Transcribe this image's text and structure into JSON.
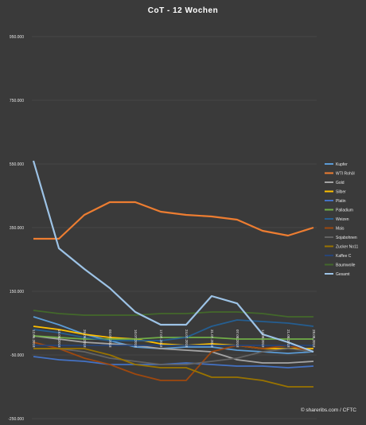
{
  "chart_data": {
    "type": "line",
    "title": "CoT - 12 Wochen",
    "credit": "© shareribs.com / CFTC",
    "ylim": [
      -250000,
      950000
    ],
    "yticks": [
      "950.000",
      "750.000",
      "550.000",
      "350.000",
      "150.000",
      "-50.000",
      "-250.000"
    ],
    "ytick_values": [
      950000,
      750000,
      550000,
      350000,
      150000,
      -50000,
      -250000
    ],
    "x": [
      "12.06.2018",
      "19.06.2018",
      "26.06.2018",
      "03.07.2018",
      "10.07.2018",
      "17.07.2018",
      "24.07.2018",
      "31.07.2018",
      "07.08.2018",
      "14.08.2018",
      "21.08.2018",
      "28.08.2018"
    ],
    "grid": true,
    "legend_position": "right",
    "series": [
      {
        "name": "Kupfer",
        "color": "#5b9bd5",
        "values": [
          70000,
          45000,
          15000,
          -5000,
          -25000,
          -30000,
          -25000,
          -25000,
          -35000,
          -40000,
          -45000,
          -40000
        ]
      },
      {
        "name": "WTI Rohöl",
        "color": "#ed7d31",
        "values": [
          315000,
          315000,
          390000,
          430000,
          430000,
          400000,
          390000,
          385000,
          375000,
          340000,
          325000,
          350000
        ]
      },
      {
        "name": "Gold",
        "color": "#a5a5a5",
        "values": [
          10000,
          0,
          -10000,
          -15000,
          -20000,
          -30000,
          -35000,
          -40000,
          -65000,
          -75000,
          -75000,
          -70000
        ]
      },
      {
        "name": "Silber",
        "color": "#ffc000",
        "values": [
          40000,
          30000,
          15000,
          5000,
          0,
          -15000,
          -20000,
          -15000,
          -20000,
          -30000,
          -30000,
          -30000
        ]
      },
      {
        "name": "Platin",
        "color": "#4472c4",
        "values": [
          -55000,
          -65000,
          -70000,
          -80000,
          -80000,
          -80000,
          -75000,
          -80000,
          -85000,
          -85000,
          -90000,
          -85000
        ]
      },
      {
        "name": "Palladium",
        "color": "#70ad47",
        "values": [
          10000,
          5000,
          0,
          0,
          0,
          5000,
          5000,
          5000,
          0,
          0,
          0,
          0
        ]
      },
      {
        "name": "Weizen",
        "color": "#255e91",
        "values": [
          30000,
          20000,
          5000,
          -5000,
          -5000,
          -5000,
          5000,
          40000,
          60000,
          55000,
          50000,
          40000
        ]
      },
      {
        "name": "Mais",
        "color": "#9e480e",
        "values": [
          -10000,
          -30000,
          -60000,
          -80000,
          -110000,
          -130000,
          -130000,
          -40000,
          -20000,
          -30000,
          -20000,
          -40000
        ]
      },
      {
        "name": "Sojabohnen",
        "color": "#636363",
        "values": [
          -30000,
          -30000,
          -40000,
          -60000,
          -70000,
          -80000,
          -80000,
          -70000,
          -60000,
          -40000,
          -30000,
          -40000
        ]
      },
      {
        "name": "Zucker No11",
        "color": "#997300",
        "values": [
          -30000,
          -30000,
          -30000,
          -50000,
          -80000,
          -90000,
          -90000,
          -120000,
          -120000,
          -130000,
          -150000,
          -150000
        ]
      },
      {
        "name": "Kaffee C",
        "color": "#264478",
        "values": [
          -20000,
          -20000,
          -20000,
          -20000,
          -20000,
          -20000,
          -20000,
          -20000,
          -20000,
          -20000,
          -20000,
          -20000
        ]
      },
      {
        "name": "Baumwolle",
        "color": "#43682b",
        "values": [
          90000,
          80000,
          75000,
          75000,
          75000,
          80000,
          80000,
          85000,
          85000,
          80000,
          70000,
          70000
        ]
      },
      {
        "name": "Gesamt",
        "color": "#9dc3e6",
        "values": [
          560000,
          285000,
          220000,
          160000,
          85000,
          45000,
          45000,
          135000,
          112000,
          15000,
          -10000,
          -40000
        ]
      }
    ]
  }
}
